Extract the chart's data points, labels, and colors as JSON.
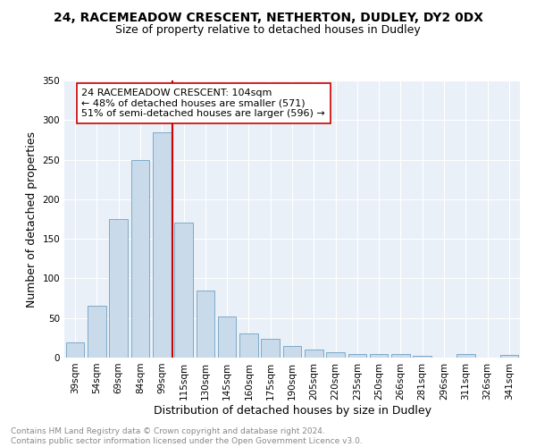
{
  "title1": "24, RACEMEADOW CRESCENT, NETHERTON, DUDLEY, DY2 0DX",
  "title2": "Size of property relative to detached houses in Dudley",
  "xlabel": "Distribution of detached houses by size in Dudley",
  "ylabel": "Number of detached properties",
  "categories": [
    "39sqm",
    "54sqm",
    "69sqm",
    "84sqm",
    "99sqm",
    "115sqm",
    "130sqm",
    "145sqm",
    "160sqm",
    "175sqm",
    "190sqm",
    "205sqm",
    "220sqm",
    "235sqm",
    "250sqm",
    "266sqm",
    "281sqm",
    "296sqm",
    "311sqm",
    "326sqm",
    "341sqm"
  ],
  "values": [
    19,
    65,
    175,
    250,
    285,
    170,
    85,
    52,
    30,
    24,
    15,
    10,
    7,
    5,
    5,
    4,
    2,
    0,
    4,
    0,
    3
  ],
  "bar_color": "#c9daea",
  "bar_edge_color": "#7faac8",
  "vline_x_index": 4.5,
  "vline_color": "#cc0000",
  "annotation_text": "24 RACEMEADOW CRESCENT: 104sqm\n← 48% of detached houses are smaller (571)\n51% of semi-detached houses are larger (596) →",
  "annotation_box_color": "#ffffff",
  "annotation_box_edge": "#cc0000",
  "footnote": "Contains HM Land Registry data © Crown copyright and database right 2024.\nContains public sector information licensed under the Open Government Licence v3.0.",
  "ylim": [
    0,
    350
  ],
  "yticks": [
    0,
    50,
    100,
    150,
    200,
    250,
    300,
    350
  ],
  "background_color": "#eaf0f8",
  "grid_color": "#ffffff",
  "title1_fontsize": 10,
  "title2_fontsize": 9,
  "axis_fontsize": 9,
  "tick_fontsize": 7.5,
  "annot_fontsize": 8,
  "footnote_fontsize": 6.5,
  "footnote_color": "#888888"
}
